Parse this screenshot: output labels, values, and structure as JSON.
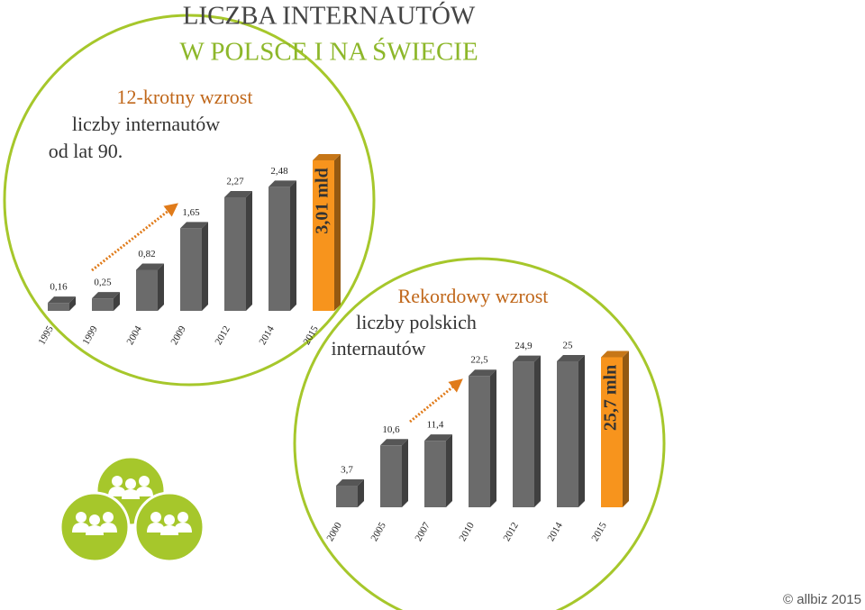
{
  "header": {
    "title_line1": "LICZBA INTERNAUTÓW",
    "title_line2": "W POLSCE I NA ŚWIECIE"
  },
  "footer": "© allbiz 2015",
  "chart_data": [
    {
      "type": "bar",
      "title": [
        "12-krotny wzrost",
        "liczby internautów",
        "od lat 90."
      ],
      "categories": [
        "1995",
        "1999",
        "2004",
        "2009",
        "2012",
        "2014",
        "2015"
      ],
      "values": [
        0.16,
        0.25,
        0.82,
        1.65,
        2.27,
        2.48,
        3.01
      ],
      "value_labels": [
        "0,16",
        "0,25",
        "0,82",
        "1,65",
        "2,27",
        "2,48",
        "3,01 mld"
      ],
      "colors": [
        "#6b6b6b",
        "#6b6b6b",
        "#6b6b6b",
        "#6b6b6b",
        "#6b6b6b",
        "#6b6b6b",
        "#f7941d"
      ]
    },
    {
      "type": "bar",
      "title": [
        "Rekordowy wzrost",
        "liczby polskich",
        "internautów"
      ],
      "categories": [
        "2000",
        "2005",
        "2007",
        "2010",
        "2012",
        "2014",
        "2015"
      ],
      "values": [
        3.7,
        10.6,
        11.4,
        22.5,
        24.9,
        25,
        25.7
      ],
      "value_labels": [
        "3,7",
        "10,6",
        "11,4",
        "22,5",
        "24,9",
        "25",
        "25,7 mln"
      ],
      "colors": [
        "#6b6b6b",
        "#6b6b6b",
        "#6b6b6b",
        "#6b6b6b",
        "#6b6b6b",
        "#6b6b6b",
        "#f7941d"
      ]
    }
  ]
}
